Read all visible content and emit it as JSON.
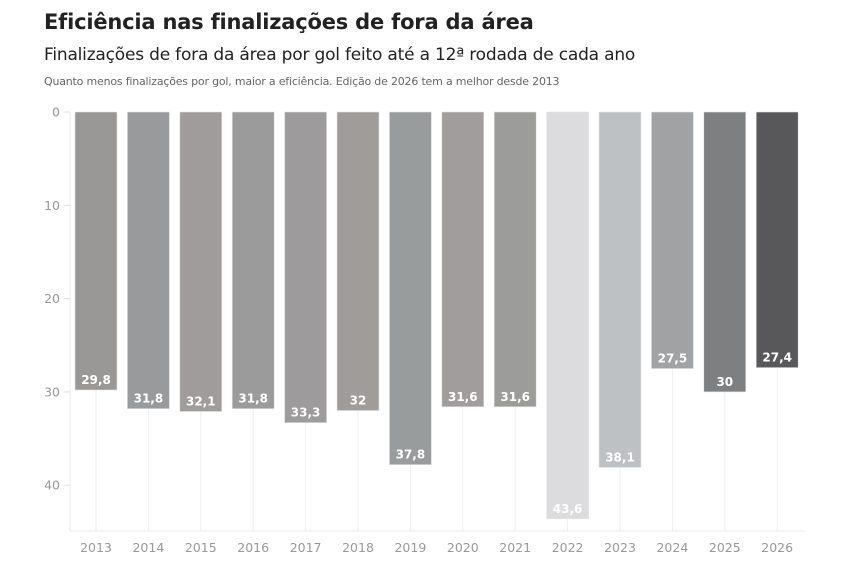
{
  "header": {
    "title": "Eficiência nas finalizações de fora da área",
    "subtitle": "Finalizações de fora da área por gol feito até a 12ª rodada de cada ano",
    "note": "Quanto menos finalizações por gol, maior a eficiência. Edição de 2026 tem a melhor desde 2013"
  },
  "chart_data": {
    "type": "bar",
    "title": "Eficiência nas finalizações de fora da área",
    "subtitle": "Finalizações de fora da área por gol feito até a 12ª rodada de cada ano",
    "annotation": "Quanto menos finalizações por gol, maior a eficiência. Edição de 2026 tem a melhor desde 2013",
    "xlabel": "",
    "ylabel": "",
    "y_axis_inverted": true,
    "ylim": [
      0,
      45
    ],
    "yticks": [
      0,
      10,
      20,
      30,
      40
    ],
    "grid": "vertical",
    "categories": [
      "2013",
      "2014",
      "2015",
      "2016",
      "2017",
      "2018",
      "2019",
      "2020",
      "2021",
      "2022",
      "2023",
      "2024",
      "2025",
      "2026"
    ],
    "values": [
      29.8,
      31.8,
      32.1,
      31.8,
      33.3,
      32,
      37.8,
      31.6,
      31.6,
      43.6,
      38.1,
      27.5,
      30,
      27.4
    ],
    "value_labels": [
      "29,8",
      "31,8",
      "32,1",
      "31,8",
      "33,3",
      "32",
      "37,8",
      "31,6",
      "31,6",
      "43,6",
      "38,1",
      "27,5",
      "30",
      "27,4"
    ],
    "colors": [
      "#9a9896",
      "#999a9c",
      "#a09c9b",
      "#9a9b9a",
      "#9d9b9b",
      "#9f9c9a",
      "#999c9d",
      "#a19d9d",
      "#9c9c9a",
      "#dcdcde",
      "#bec1c3",
      "#a0a2a4",
      "#7e7f81",
      "#58585a"
    ]
  }
}
